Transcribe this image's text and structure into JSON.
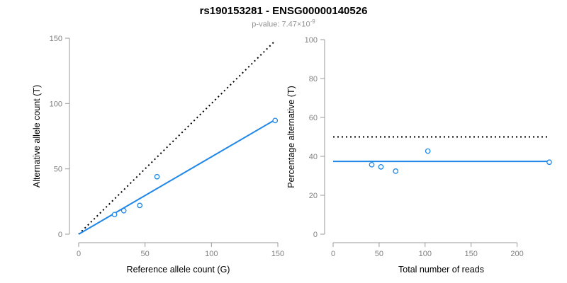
{
  "header": {
    "title": "rs190153281 - ENSG00000140526",
    "pvalue_label": "p-value: 7.47×10",
    "pvalue_exponent": "-9"
  },
  "colors": {
    "accent_blue": "#1E87E8",
    "axis_gray": "#999999",
    "tick_label_gray": "#808080",
    "title_black": "#000000",
    "subtitle_gray": "#949494",
    "background": "#FFFFFF"
  },
  "chart_data": [
    {
      "type": "scatter",
      "title": "",
      "xlabel": "Reference allele count (G)",
      "ylabel": "Alternative allele count (T)",
      "xlim": [
        0,
        150
      ],
      "ylim": [
        0,
        150
      ],
      "xticks": [
        0,
        50,
        100,
        150
      ],
      "yticks": [
        0,
        50,
        100,
        150
      ],
      "grid": false,
      "legend": null,
      "points": [
        [
          27,
          15
        ],
        [
          34,
          18
        ],
        [
          46,
          22
        ],
        [
          59,
          44
        ],
        [
          148,
          87
        ]
      ],
      "lines": [
        {
          "name": "identity-diagonal",
          "style": "dotted",
          "color": "#000000",
          "from": [
            0,
            0
          ],
          "to": [
            147,
            147
          ]
        },
        {
          "name": "allelic-ratio-fit",
          "style": "solid",
          "color": "#1E87E8",
          "from": [
            0,
            0
          ],
          "to": [
            148,
            87.6
          ]
        }
      ]
    },
    {
      "type": "scatter",
      "title": "",
      "xlabel": "Total number of reads",
      "ylabel": "Percentage alternative (T)",
      "xlim": [
        0,
        235
      ],
      "ylim": [
        0,
        100
      ],
      "xticks": [
        0,
        50,
        100,
        150,
        200
      ],
      "yticks": [
        0,
        20,
        40,
        60,
        80,
        100
      ],
      "grid": false,
      "legend": null,
      "points": [
        [
          42,
          35.7
        ],
        [
          52,
          34.6
        ],
        [
          68,
          32.4
        ],
        [
          103,
          42.7
        ],
        [
          235,
          37.0
        ]
      ],
      "lines": [
        {
          "name": "expected-50-percent",
          "style": "dotted",
          "color": "#000000",
          "from": [
            0,
            50
          ],
          "to": [
            235,
            50
          ]
        },
        {
          "name": "mean-percentage",
          "style": "solid",
          "color": "#1E87E8",
          "from": [
            0,
            37.4
          ],
          "to": [
            235,
            37.4
          ]
        }
      ]
    }
  ]
}
